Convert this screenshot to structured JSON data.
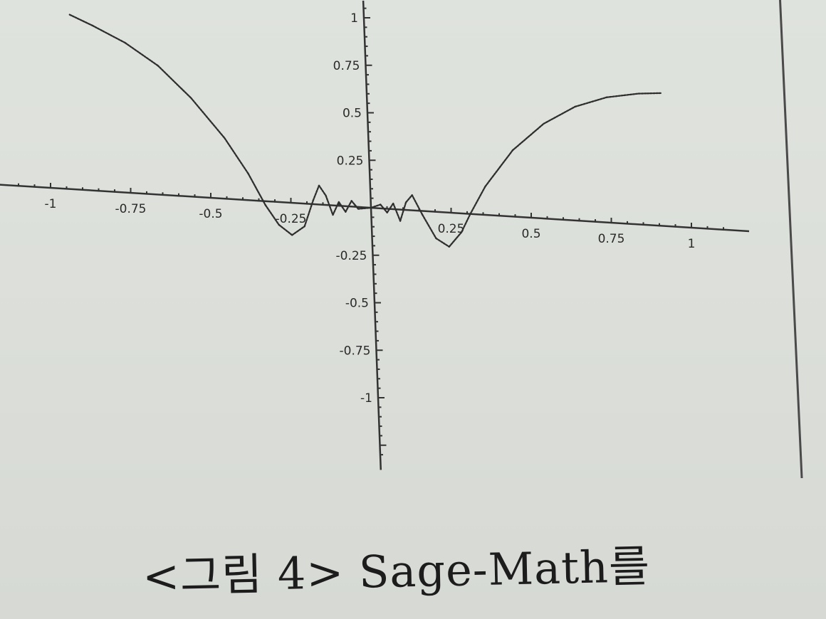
{
  "caption": "<그림 4> Sage-Math를",
  "chart_data": {
    "type": "line",
    "title": "",
    "xlabel": "",
    "ylabel": "",
    "xlim": [
      -1,
      1
    ],
    "ylim": [
      -1,
      1
    ],
    "x_ticks": [
      {
        "value": -1,
        "label": "-1"
      },
      {
        "value": -0.75,
        "label": "-0.75"
      },
      {
        "value": -0.5,
        "label": "-0.5"
      },
      {
        "value": -0.25,
        "label": "-0.25"
      },
      {
        "value": 0.25,
        "label": "0.25"
      },
      {
        "value": 0.5,
        "label": "0.5"
      },
      {
        "value": 0.75,
        "label": "0.75"
      },
      {
        "value": 1,
        "label": "1"
      }
    ],
    "y_ticks": [
      {
        "value": 1,
        "label": "1"
      },
      {
        "value": 0.75,
        "label": "0.75"
      },
      {
        "value": 0.5,
        "label": "0.5"
      },
      {
        "value": 0.25,
        "label": "0.25"
      },
      {
        "value": -0.25,
        "label": "-0.25"
      },
      {
        "value": -0.5,
        "label": "-0.5"
      },
      {
        "value": -0.75,
        "label": "-0.75"
      },
      {
        "value": -1,
        "label": "-1"
      }
    ],
    "series": [
      {
        "points": [
          [
            -0.92,
            0.92
          ],
          [
            -0.85,
            0.87
          ],
          [
            -0.75,
            0.79
          ],
          [
            -0.65,
            0.68
          ],
          [
            -0.55,
            0.52
          ],
          [
            -0.45,
            0.32
          ],
          [
            -0.38,
            0.14
          ],
          [
            -0.33,
            -0.02
          ],
          [
            -0.29,
            -0.12
          ],
          [
            -0.25,
            -0.17
          ],
          [
            -0.21,
            -0.12
          ],
          [
            -0.18,
            0.02
          ],
          [
            -0.16,
            0.1
          ],
          [
            -0.14,
            0.05
          ],
          [
            -0.12,
            -0.05
          ],
          [
            -0.1,
            0.02
          ],
          [
            -0.08,
            -0.03
          ],
          [
            -0.06,
            0.03
          ],
          [
            -0.04,
            -0.01
          ],
          [
            0,
            0
          ],
          [
            0.03,
            0.02
          ],
          [
            0.05,
            -0.02
          ],
          [
            0.07,
            0.03
          ],
          [
            0.09,
            -0.06
          ],
          [
            0.11,
            0.04
          ],
          [
            0.13,
            0.08
          ],
          [
            0.16,
            -0.02
          ],
          [
            0.2,
            -0.14
          ],
          [
            0.24,
            -0.18
          ],
          [
            0.28,
            -0.1
          ],
          [
            0.31,
            0.0
          ],
          [
            0.36,
            0.15
          ],
          [
            0.45,
            0.35
          ],
          [
            0.55,
            0.5
          ],
          [
            0.65,
            0.6
          ],
          [
            0.75,
            0.66
          ],
          [
            0.85,
            0.69
          ],
          [
            0.92,
            0.7
          ]
        ]
      }
    ]
  }
}
